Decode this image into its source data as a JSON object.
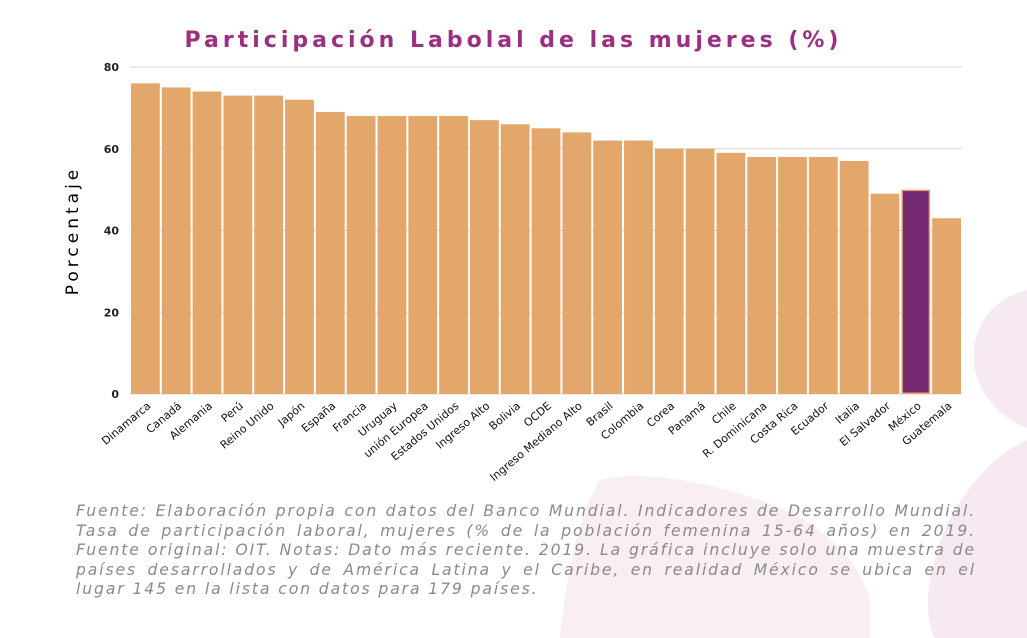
{
  "colors": {
    "bar": "#e4a76b",
    "highlight": "#732870",
    "title": "#9b2f82",
    "grid": "#d9d9d9",
    "decoration": "#f6e9f1"
  },
  "decoration": {
    "icon": "hands-icon"
  },
  "chart_data": {
    "type": "bar",
    "title": "Participación Labolal de las mujeres (%)",
    "ylabel": "Porcentaje",
    "xlabel": "",
    "ylim": [
      0,
      80
    ],
    "yticks": [
      0,
      20,
      40,
      60,
      80
    ],
    "grid": true,
    "highlight_category": "México",
    "categories": [
      "Dinamarca",
      "Canadá",
      "Alemania",
      "Perú",
      "Reino Unido",
      "Japón",
      "España",
      "Francia",
      "Uruguay",
      "unión Europea",
      "Estados Unidos",
      "Ingreso Alto",
      "Bolivia",
      "OCDE",
      "Ingreso Mediano Alto",
      "Brasil",
      "Colombia",
      "Corea",
      "Panamá",
      "Chile",
      "R. Dominicana",
      "Costa Rica",
      "Ecuador",
      "Italia",
      "El Salvador",
      "México",
      "Guatemala"
    ],
    "values": [
      76,
      75,
      74,
      73,
      73,
      72,
      69,
      68,
      68,
      68,
      68,
      67,
      66,
      65,
      64,
      62,
      62,
      60,
      60,
      59,
      58,
      58,
      58,
      57,
      49,
      50,
      43
    ]
  },
  "source_text": "Fuente: Elaboración propia con datos del Banco Mundial. Indicadores de Desarrollo Mundial. Tasa de participación laboral, mujeres (% de la población femenina 15-64 años) en 2019. Fuente original: OIT. Notas: Dato más reciente. 2019. La gráfica incluye solo una muestra de países desarrollados y de América Latina y el Caribe, en realidad México se ubica en el lugar 145 en la lista con datos para 179 países."
}
